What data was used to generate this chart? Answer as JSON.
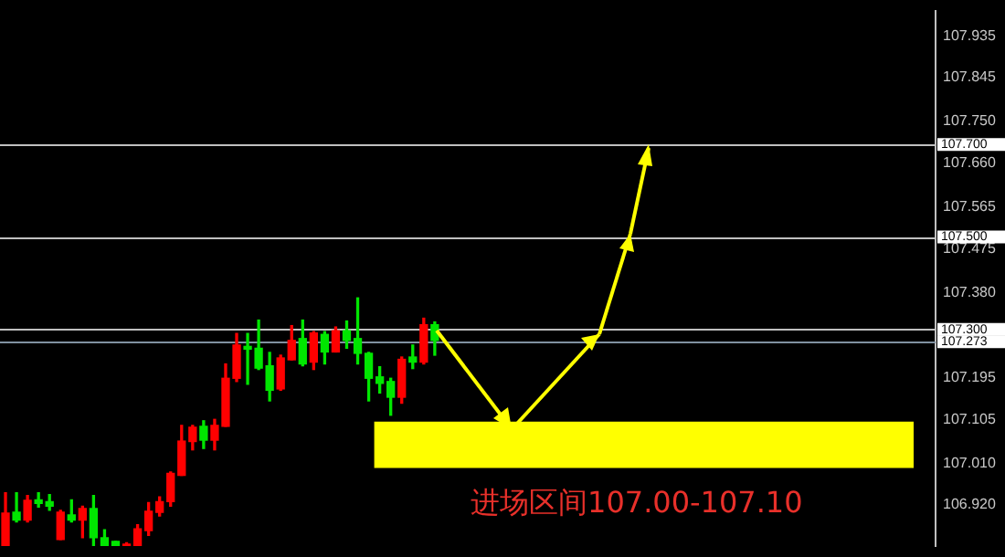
{
  "chart_data": {
    "type": "candlestick",
    "relative": false,
    "categories": [
      null,
      null,
      null,
      null,
      null,
      null,
      null,
      null,
      null,
      null,
      null,
      null,
      null,
      null,
      null,
      null,
      null,
      null,
      null,
      null,
      null,
      null,
      null,
      null,
      null,
      null,
      null,
      null,
      null,
      null,
      null,
      null,
      null,
      null,
      null,
      null,
      null,
      null,
      null,
      null,
      null,
      null,
      null,
      null,
      null,
      null,
      null,
      null,
      null,
      null,
      null,
      null,
      null,
      null,
      null,
      null,
      null,
      null,
      null,
      null,
      null,
      null,
      null,
      null,
      null,
      null,
      null,
      null,
      null,
      null,
      null,
      null,
      null,
      null,
      null,
      null,
      null,
      null,
      null,
      null,
      null,
      null,
      null,
      null,
      null
    ],
    "ohlc": [
      [
        106.832,
        106.946,
        106.832,
        106.902
      ],
      [
        106.904,
        106.946,
        106.883,
        106.887
      ],
      [
        106.887,
        106.94,
        106.883,
        106.93
      ],
      [
        106.931,
        106.946,
        106.915,
        106.923
      ],
      [
        106.927,
        106.942,
        106.908,
        106.917
      ],
      [
        106.845,
        106.908,
        106.845,
        106.904
      ],
      [
        106.898,
        106.931,
        106.883,
        106.887
      ],
      [
        106.887,
        106.917,
        106.849,
        106.912
      ],
      [
        106.912,
        106.94,
        106.832,
        106.849
      ],
      [
        106.849,
        106.866,
        106.832,
        106.832
      ],
      [
        106.841,
        106.841,
        106.832,
        106.832
      ],
      [
        106.832,
        106.838,
        106.832,
        106.835
      ],
      [
        106.832,
        106.877,
        106.832,
        106.868
      ],
      [
        106.864,
        106.925,
        106.854,
        106.906
      ],
      [
        106.904,
        106.937,
        106.896,
        106.927
      ],
      [
        106.927,
        106.991,
        106.917,
        106.988
      ],
      [
        106.984,
        107.092,
        106.984,
        107.058
      ],
      [
        107.057,
        107.092,
        107.039,
        107.088
      ],
      [
        107.09,
        107.102,
        107.042,
        107.06
      ],
      [
        107.06,
        107.105,
        107.039,
        107.092
      ],
      [
        107.09,
        107.225,
        107.09,
        107.194
      ],
      [
        107.194,
        107.291,
        107.187,
        107.266
      ],
      [
        107.263,
        107.291,
        107.181,
        107.257
      ],
      [
        107.259,
        107.32,
        107.213,
        107.216
      ],
      [
        107.221,
        107.25,
        107.145,
        107.168
      ],
      [
        107.171,
        107.244,
        107.168,
        107.238
      ],
      [
        107.234,
        107.308,
        107.234,
        107.276
      ],
      [
        107.28,
        107.32,
        107.221,
        107.225
      ],
      [
        107.229,
        107.295,
        107.213,
        107.292
      ],
      [
        107.289,
        107.295,
        107.225,
        107.251
      ],
      [
        107.251,
        107.305,
        107.251,
        107.297
      ],
      [
        107.297,
        107.318,
        107.259,
        107.276
      ],
      [
        107.28,
        107.368,
        107.225,
        107.248
      ],
      [
        107.248,
        107.25,
        107.145,
        107.194
      ],
      [
        107.197,
        107.219,
        107.162,
        107.183
      ],
      [
        107.187,
        107.194,
        107.114,
        107.153
      ],
      [
        107.153,
        107.24,
        107.14,
        107.235
      ],
      [
        107.24,
        107.266,
        107.215,
        107.229
      ],
      [
        107.229,
        107.324,
        107.225,
        107.31
      ],
      [
        107.31,
        107.316,
        107.244,
        107.276
      ],
      null,
      null,
      null,
      null,
      null,
      null,
      null,
      null,
      null,
      null,
      null,
      null,
      null,
      null,
      null,
      null,
      null,
      null,
      null,
      null,
      null,
      null,
      null,
      null,
      null,
      null,
      null,
      null,
      null,
      null,
      null,
      null,
      null,
      null,
      null,
      null,
      null,
      null,
      null,
      null,
      null,
      null,
      null,
      null,
      null
    ],
    "colors": [
      "#ff0000",
      "#00e600",
      "#ff0000",
      "#00e600",
      "#00e600",
      "#ff0000",
      "#00e600",
      "#ff0000",
      "#00e600",
      "#00e600",
      "#00e600",
      "#ff0000",
      "#ff0000",
      "#ff0000",
      "#ff0000",
      "#ff0000",
      "#ff0000",
      "#ff0000",
      "#00e600",
      "#ff0000",
      "#ff0000",
      "#ff0000",
      "#00e600",
      "#00e600",
      "#00e600",
      "#ff0000",
      "#ff0000",
      "#00e600",
      "#ff0000",
      "#00e600",
      "#ff0000",
      "#00e600",
      "#00e600",
      "#00e600",
      "#00e600",
      "#00e600",
      "#ff0000",
      "#00e600",
      "#ff0000",
      "#00e600",
      null,
      null,
      null,
      null,
      null,
      null,
      null,
      null,
      null,
      null,
      null,
      null,
      null,
      null,
      null,
      null,
      null,
      null,
      null,
      null,
      null,
      null,
      null,
      null,
      null,
      null,
      null,
      null,
      null,
      null,
      null,
      null,
      null,
      null,
      null,
      null,
      null,
      null,
      null,
      null,
      null,
      null,
      null,
      null,
      null
    ],
    "ylim": [
      106.83,
      107.99
    ],
    "yticks": [
      {
        "value": 106.92,
        "label": "106.920"
      },
      {
        "value": 107.01,
        "label": "107.010"
      },
      107.105,
      107.195,
      {
        "value": 107.38,
        "label": "107.380"
      },
      107.475,
      107.565,
      {
        "value": 107.66,
        "label": "107.660"
      },
      {
        "value": 107.75,
        "label": "107.750"
      },
      107.845,
      107.935
    ],
    "tick_labels": "y",
    "grid": false,
    "legend": false,
    "ref_lines": [
      {
        "axis": "y",
        "value": 107.7,
        "label": "107.700",
        "color": "#c0c0c0"
      },
      {
        "axis": "y",
        "value": 107.5,
        "label": "107.500",
        "color": "#c0c0c0"
      },
      {
        "axis": "y",
        "value": 107.3,
        "label": "107.300",
        "color": "#c0c0c0"
      },
      {
        "axis": "y",
        "value": 107.273,
        "label": "107.273",
        "color": "#8090a0"
      }
    ],
    "bands": [
      {
        "axis": "y",
        "from": 107.0,
        "to": 107.1,
        "label": "进场区间107.00-107.10",
        "color": "#ffff00"
      }
    ]
  }
}
